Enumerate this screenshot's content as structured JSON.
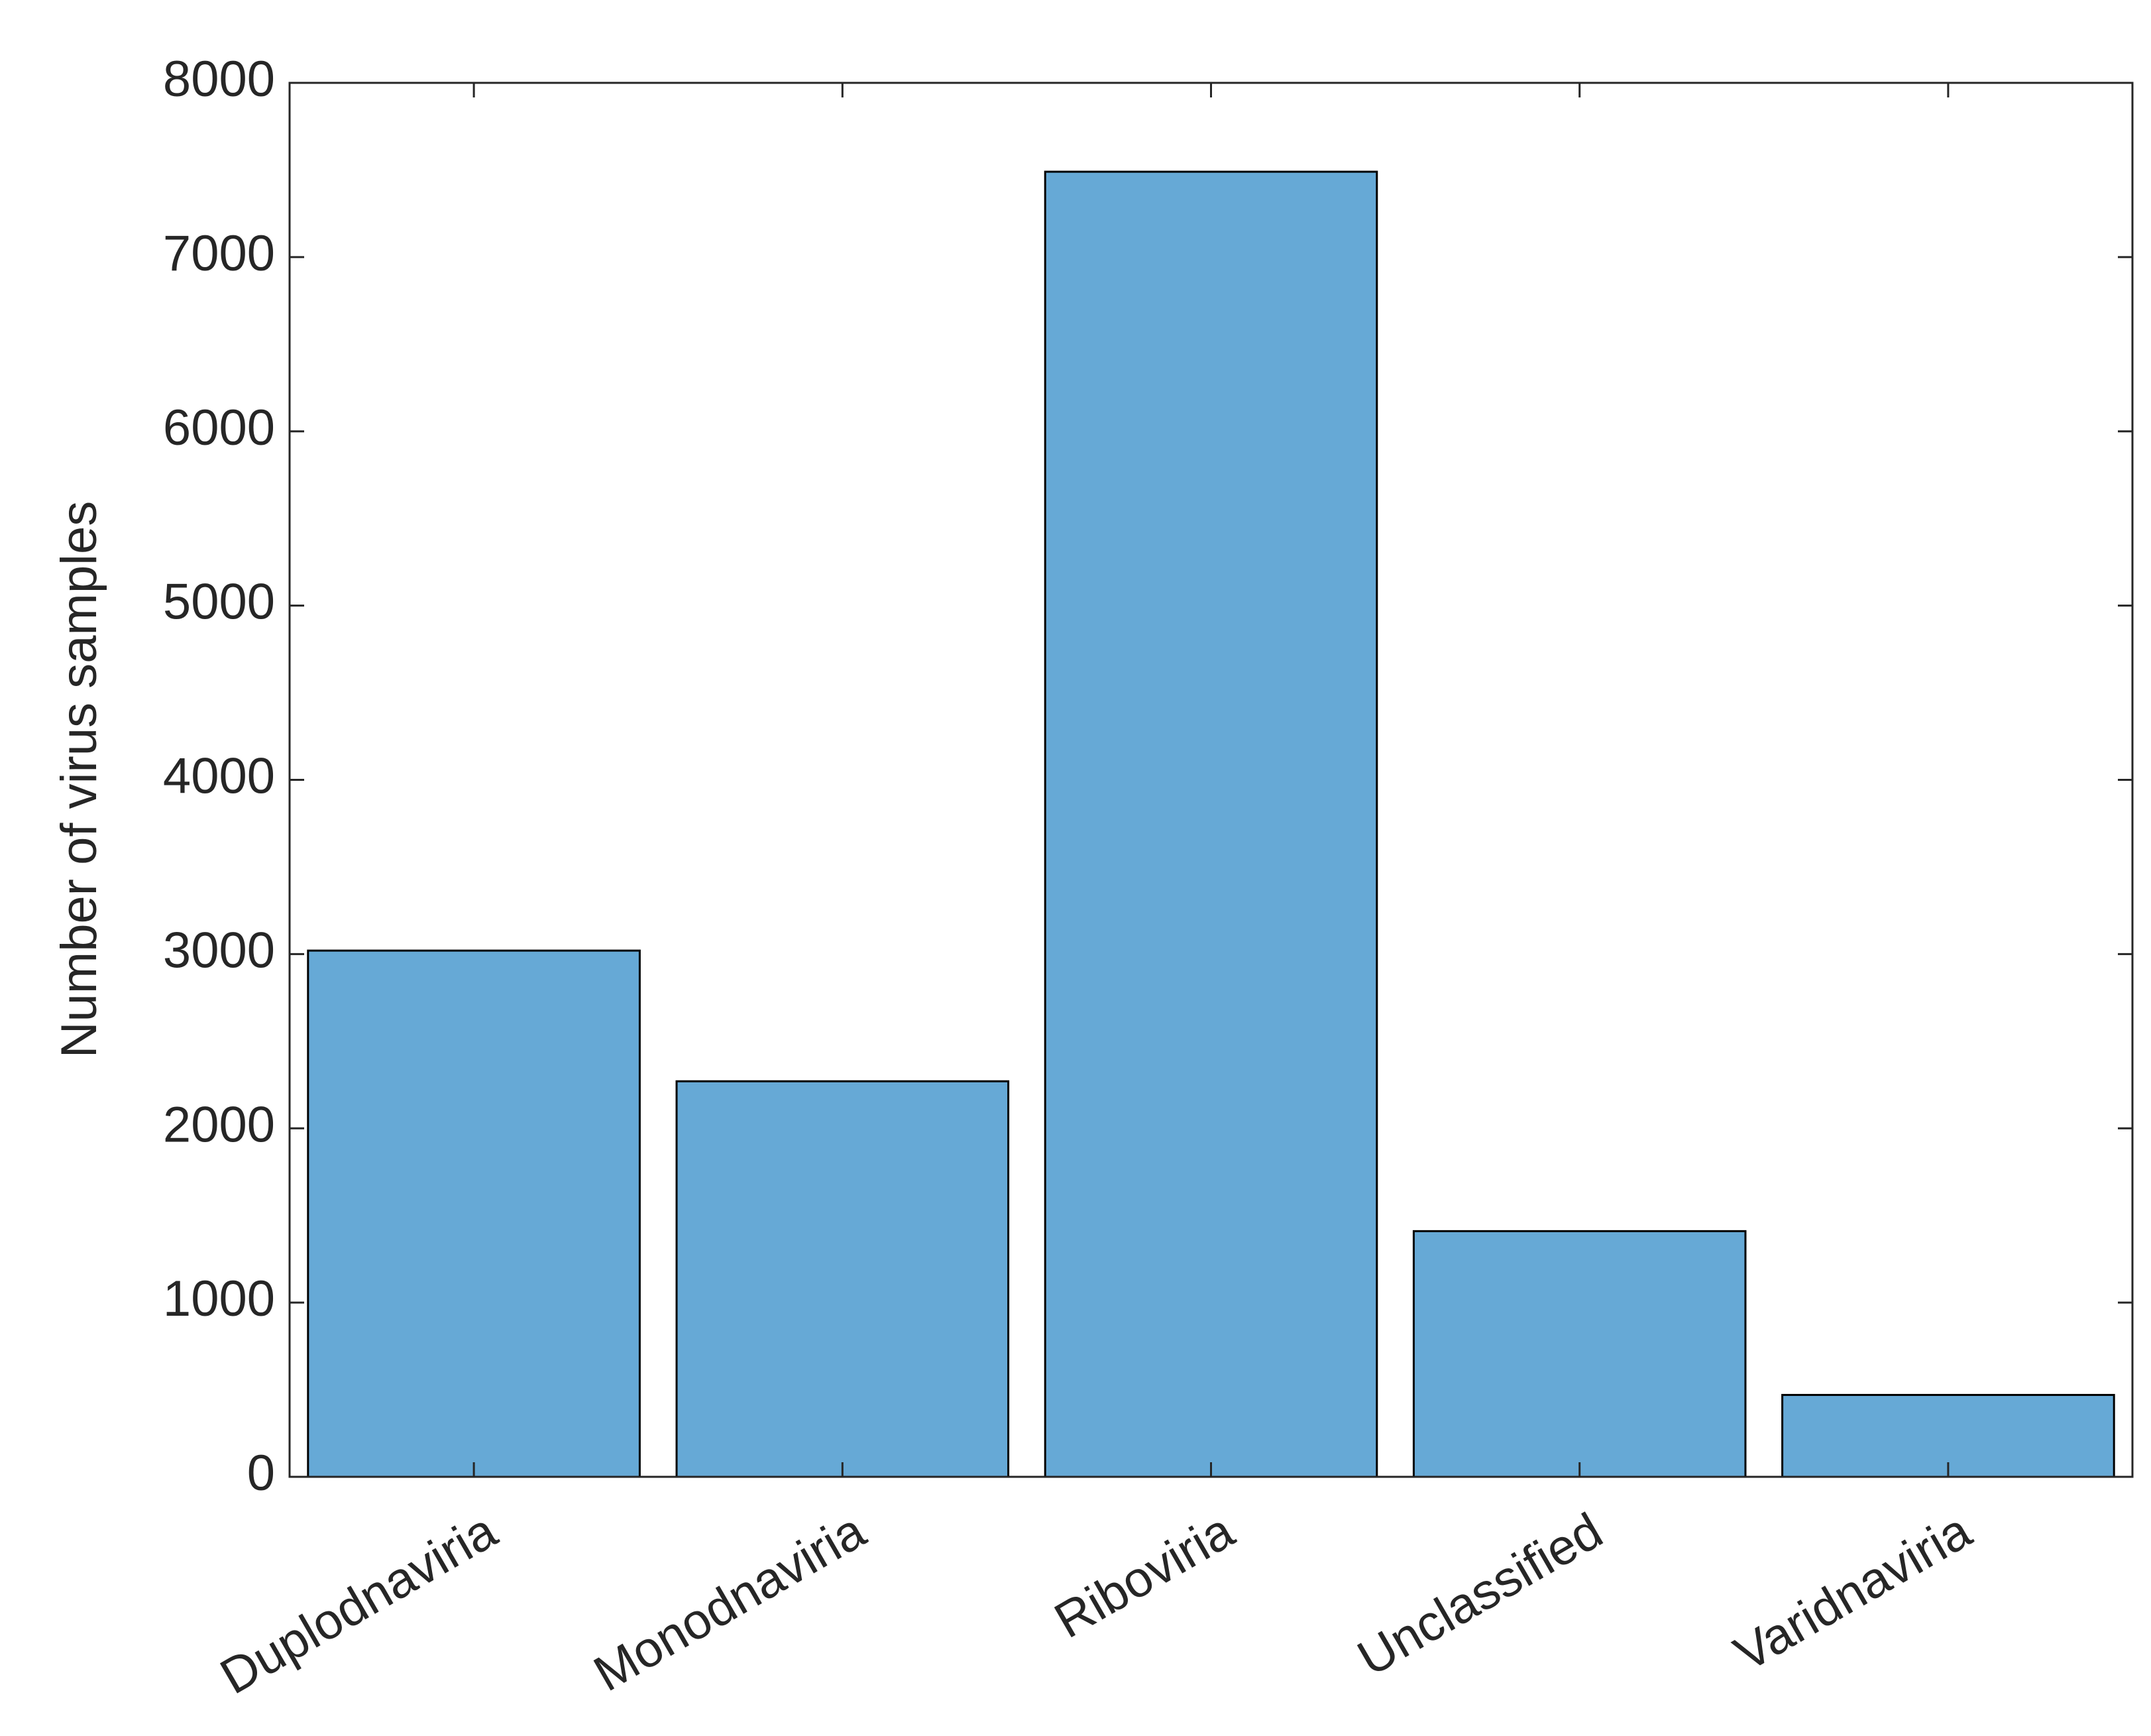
{
  "chart_data": {
    "type": "bar",
    "y_label": "Number of virus samples",
    "categories": [
      "Duplodnaviria",
      "Monodnaviria",
      "Riboviria",
      "Unclassified",
      "Varidnaviria"
    ],
    "values": [
      3020,
      2270,
      7490,
      1410,
      470
    ],
    "color": "#66a9d6",
    "ylim": [
      0,
      8000
    ],
    "yticks": [
      0,
      1000,
      2000,
      3000,
      4000,
      5000,
      6000,
      7000,
      8000
    ],
    "grid": false
  }
}
